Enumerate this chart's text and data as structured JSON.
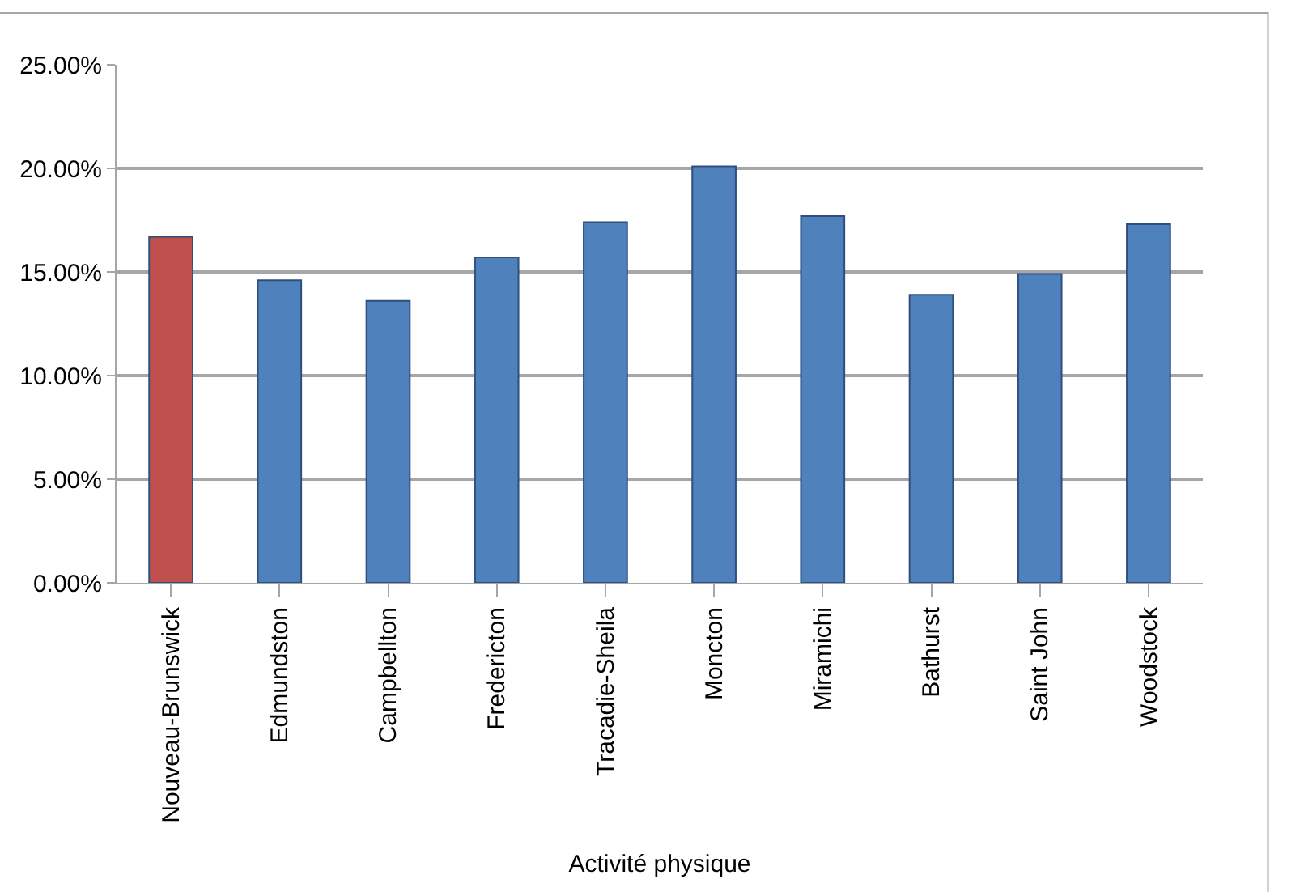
{
  "chart_data": {
    "type": "bar",
    "categories": [
      "Nouveau-Brunswick",
      "Edmundston",
      "Campbellton",
      "Fredericton",
      "Tracadie-Sheila",
      "Moncton",
      "Miramichi",
      "Bathurst",
      "Saint John",
      "Woodstock"
    ],
    "values": [
      16.7,
      14.6,
      13.6,
      15.7,
      17.4,
      20.1,
      17.7,
      13.9,
      14.9,
      17.3
    ],
    "colors": [
      "#c0504d",
      "#4f81bd",
      "#4f81bd",
      "#4f81bd",
      "#4f81bd",
      "#4f81bd",
      "#4f81bd",
      "#4f81bd",
      "#4f81bd",
      "#4f81bd"
    ],
    "xlabel": "Activité physique",
    "ylim": [
      0,
      25
    ],
    "yticks": [
      {
        "value": 0,
        "label": "0.00%"
      },
      {
        "value": 5,
        "label": "5.00%"
      },
      {
        "value": 10,
        "label": "10.00%"
      },
      {
        "value": 15,
        "label": "15.00%"
      },
      {
        "value": 20,
        "label": "20.00%"
      },
      {
        "value": 25,
        "label": "25.00%"
      }
    ],
    "grid": "y"
  }
}
